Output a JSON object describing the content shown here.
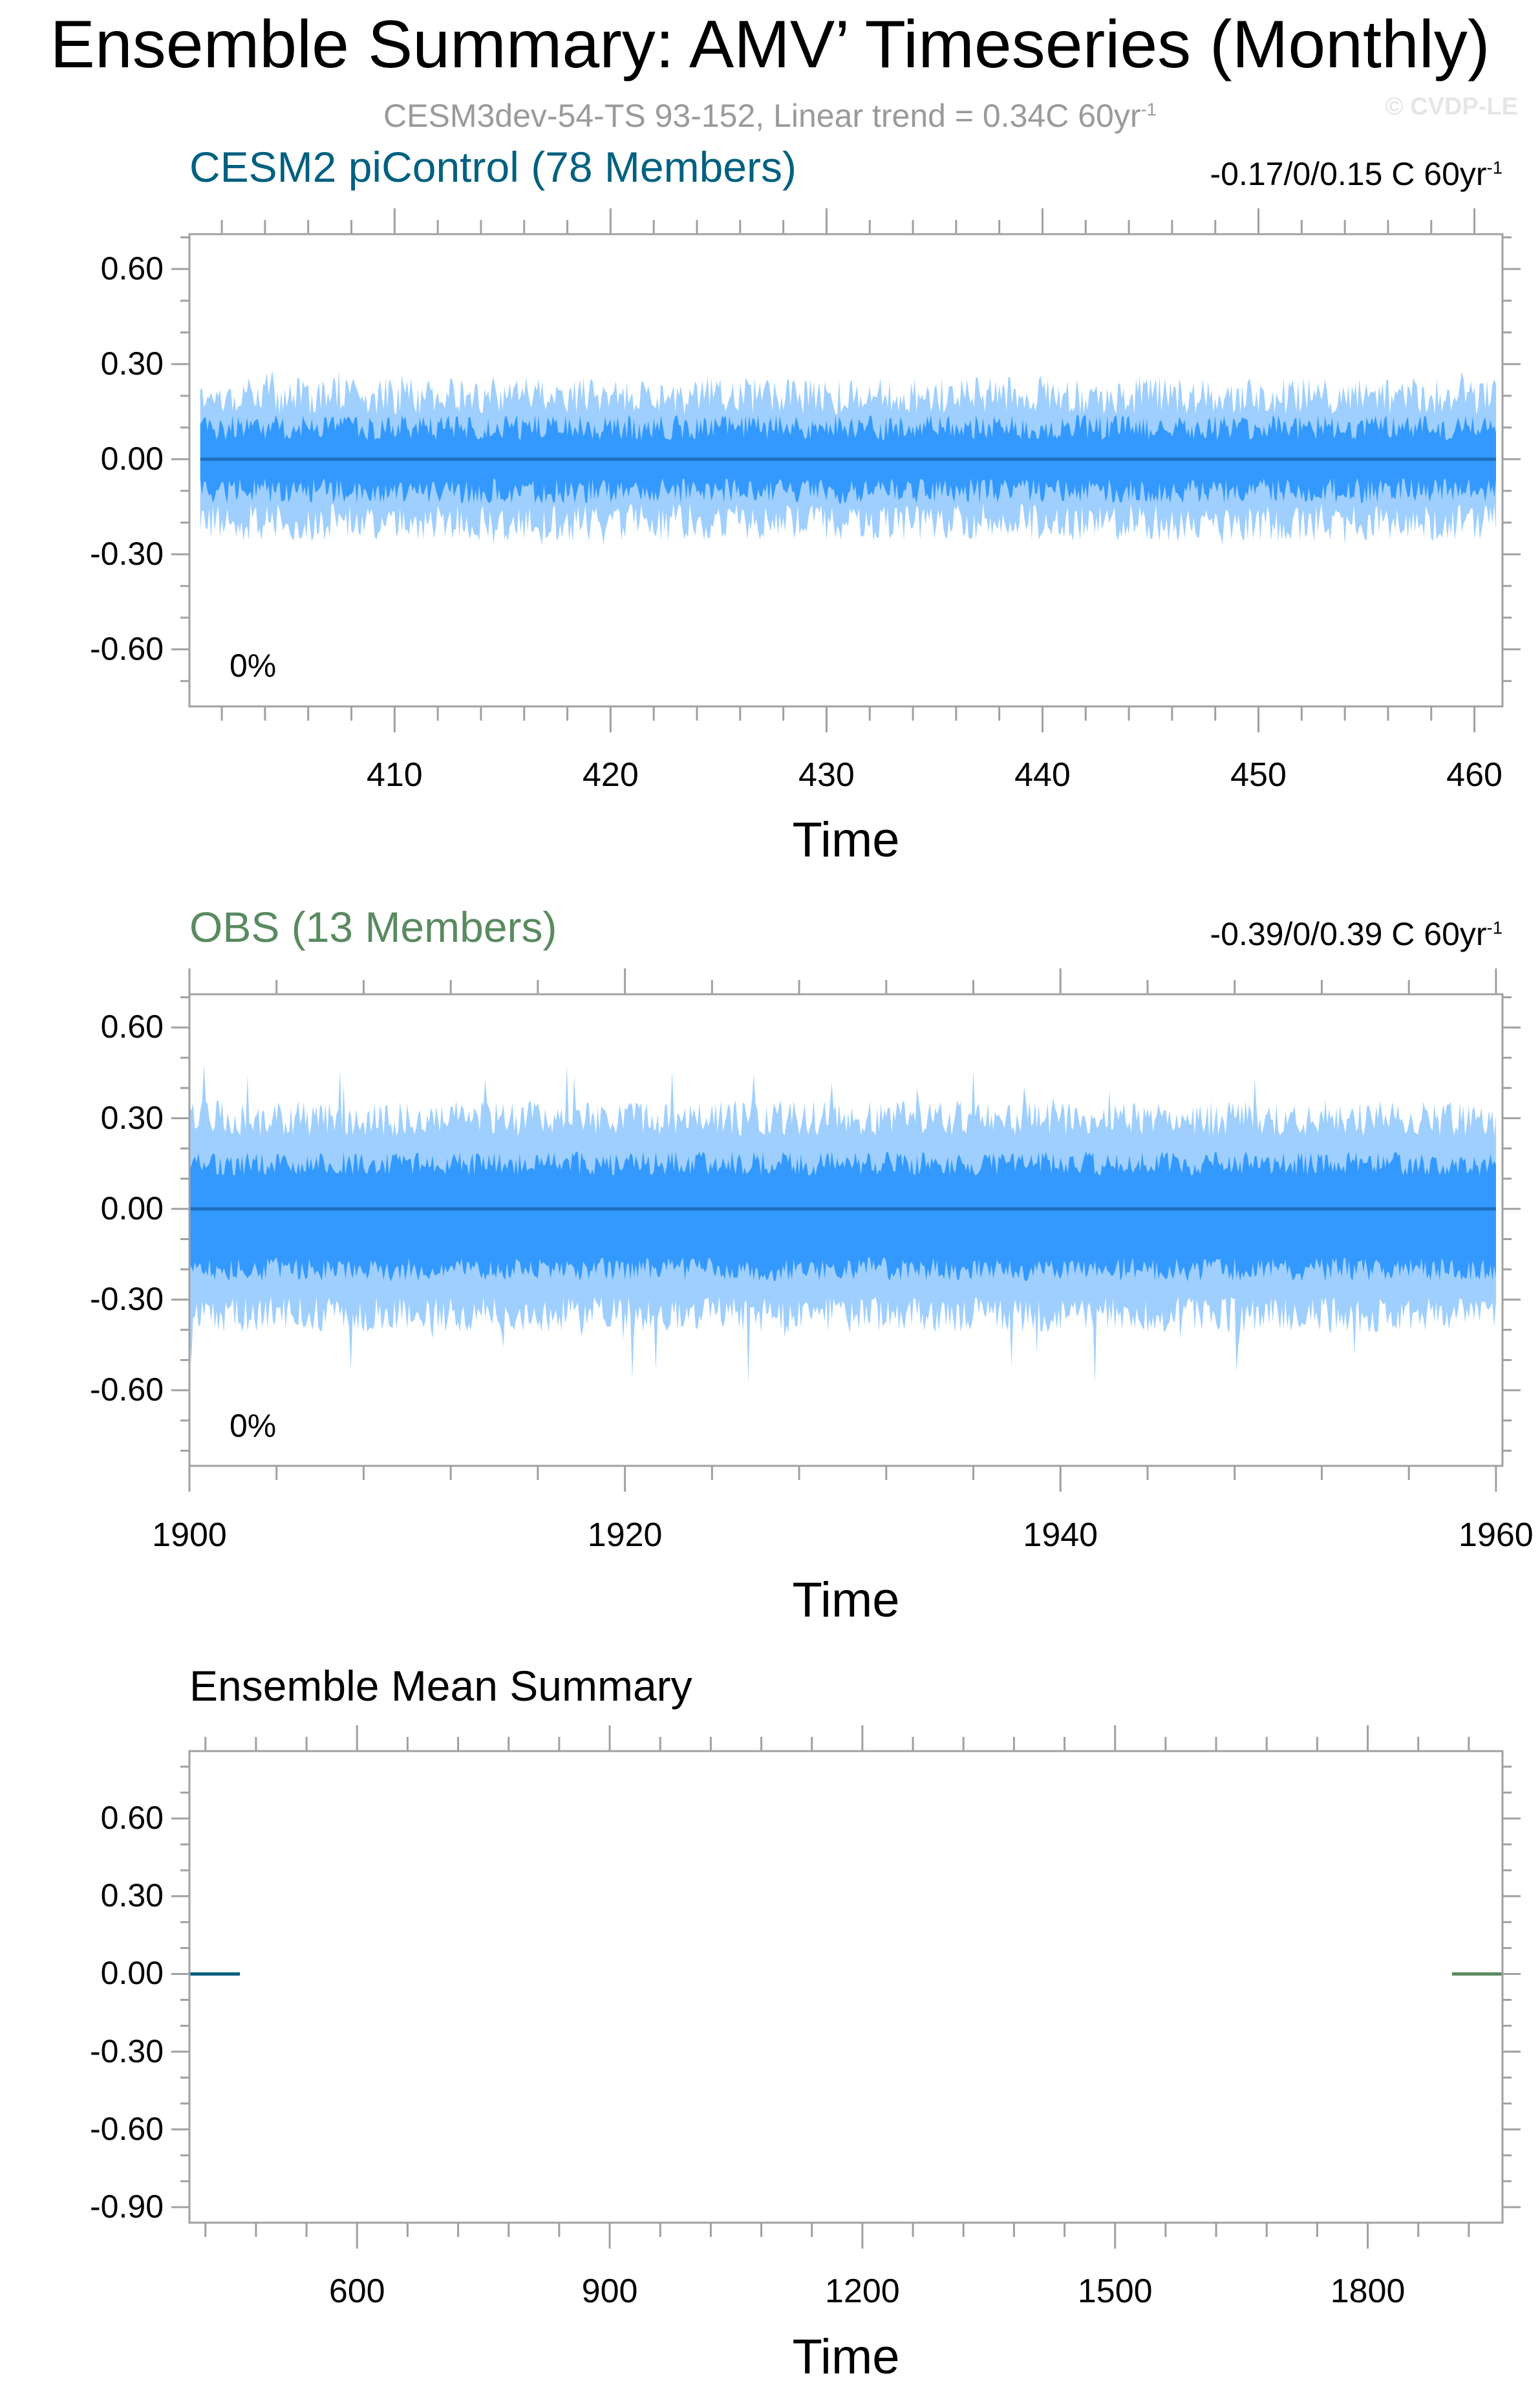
{
  "title": "Ensemble Summary: AMV’ Timeseries (Monthly)",
  "subtitle": {
    "text": "CESM3dev-54-TS 93-152, Linear trend = 0.34C 60yr",
    "sup": "-1"
  },
  "watermark": "© CVDP-LE",
  "colors": {
    "light_band": "#9fcfff",
    "dark_band": "#3399ff",
    "mean_line": "#1f6fbf",
    "cesm_title": "#006080",
    "obs_title": "#5a8a60",
    "frame": "#a0a0a0"
  },
  "chart_data": [
    {
      "type": "area",
      "title": "CESM2 piControl (78 Members)",
      "range_label": {
        "text": "-0.17/0/0.15 C 60yr",
        "sup": "-1"
      },
      "annotation": "0%",
      "xlabel": "Time",
      "ylabel": "",
      "xlim": [
        400.5,
        461.3
      ],
      "ylim": [
        -0.78,
        0.71
      ],
      "x_ticks": [
        410,
        420,
        430,
        440,
        450,
        460
      ],
      "x_tick_labels": [
        "410",
        "420",
        "430",
        "440",
        "450",
        "460"
      ],
      "y_ticks": [
        0.6,
        0.3,
        0.0,
        -0.3,
        -0.6
      ],
      "y_tick_labels": [
        "0.60",
        "0.30",
        "0.00",
        "-0.30",
        "-0.60"
      ],
      "x_range": [
        401,
        461
      ],
      "ensemble_mean": 0.0,
      "bands": [
        {
          "level": "outer",
          "approx_upper": 0.2,
          "approx_lower": -0.2,
          "peak_upper": 0.28,
          "peak_lower": -0.27
        },
        {
          "level": "inner",
          "approx_upper": 0.1,
          "approx_lower": -0.1
        }
      ]
    },
    {
      "type": "area",
      "title": "OBS (13 Members)",
      "range_label": {
        "text": "-0.39/0/0.39 C 60yr",
        "sup": "-1"
      },
      "annotation": "0%",
      "xlabel": "Time",
      "ylabel": "",
      "xlim": [
        1900,
        1960.3
      ],
      "ylim": [
        -0.85,
        0.71
      ],
      "x_ticks": [
        1900,
        1920,
        1940,
        1960
      ],
      "x_tick_labels": [
        "1900",
        "1920",
        "1940",
        "1960"
      ],
      "y_ticks": [
        0.6,
        0.3,
        0.0,
        -0.3,
        -0.6
      ],
      "y_tick_labels": [
        "0.60",
        "0.30",
        "0.00",
        "-0.30",
        "-0.60"
      ],
      "x_range": [
        1900,
        1960
      ],
      "ensemble_mean": 0.0,
      "bands": [
        {
          "level": "outer",
          "approx_upper": 0.3,
          "approx_lower": -0.35,
          "peak_upper": 0.48,
          "peak_lower": -0.58
        },
        {
          "level": "inner",
          "approx_upper": 0.15,
          "approx_lower": -0.2
        }
      ]
    },
    {
      "type": "line",
      "title": "Ensemble Mean Summary",
      "xlabel": "Time",
      "ylabel": "",
      "xlim": [
        401,
        1960
      ],
      "ylim": [
        -0.96,
        0.86
      ],
      "x_ticks": [
        600,
        900,
        1200,
        1500,
        1800
      ],
      "x_tick_labels": [
        "600",
        "900",
        "1200",
        "1500",
        "1800"
      ],
      "y_ticks": [
        0.6,
        0.3,
        0.0,
        -0.3,
        -0.6,
        -0.9
      ],
      "y_tick_labels": [
        "0.60",
        "0.30",
        "0.00",
        "-0.30",
        "-0.60",
        "-0.90"
      ],
      "series": [
        {
          "name": "CESM2 piControl",
          "color": "#006080",
          "x": [
            401,
            461
          ],
          "y": [
            0.0,
            0.0
          ]
        },
        {
          "name": "OBS",
          "color": "#5a8a60",
          "x": [
            1900,
            1960
          ],
          "y": [
            0.0,
            0.0
          ]
        }
      ]
    }
  ]
}
